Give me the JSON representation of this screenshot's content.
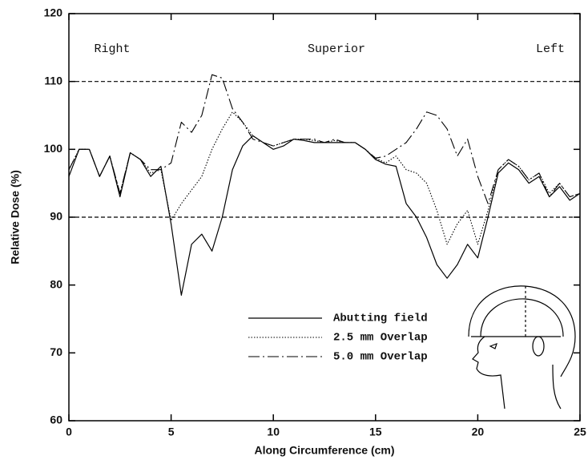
{
  "chart_data": {
    "type": "line",
    "xlabel": "Along Circumference (cm)",
    "ylabel": "Relative Dose (%)",
    "annotations": [
      "Right",
      "Superior",
      "Left"
    ],
    "reference_lines": [
      90,
      110
    ],
    "xlim": [
      0,
      25
    ],
    "xticks": [
      0,
      5,
      10,
      15,
      20,
      25
    ],
    "ylim": [
      60,
      120
    ],
    "yticks": [
      60,
      70,
      80,
      90,
      100,
      110,
      120
    ],
    "x": [
      0,
      0.5,
      1,
      1.5,
      2,
      2.5,
      3,
      3.5,
      4,
      4.5,
      5,
      5.5,
      6,
      6.5,
      7,
      7.5,
      8,
      8.5,
      9,
      9.5,
      10,
      10.5,
      11,
      11.5,
      12,
      12.5,
      13,
      13.5,
      14,
      14.5,
      15,
      15.5,
      16,
      16.5,
      17,
      17.5,
      18,
      18.5,
      19,
      19.5,
      20,
      20.5,
      21,
      21.5,
      22,
      22.5,
      23,
      23.5,
      24,
      24.5,
      25
    ],
    "series": [
      {
        "name": "Abutting field",
        "color": "#000000",
        "dash": "solid",
        "values": [
          96,
          100,
          100,
          96,
          99,
          93,
          99.5,
          98.5,
          96,
          97.5,
          89,
          78.5,
          86,
          87.5,
          85,
          90,
          97,
          100.5,
          102,
          101,
          100,
          100.5,
          101.5,
          101.3,
          101,
          101,
          101,
          101,
          101,
          100,
          98.5,
          97.8,
          97.5,
          92,
          90,
          87,
          83,
          81,
          83,
          86,
          84,
          90,
          96.5,
          98,
          97,
          95,
          96,
          93,
          94.5,
          92.5,
          93.5
        ]
      },
      {
        "name": "2.5 mm Overlap",
        "color": "#000000",
        "dash": "dotted",
        "values": [
          97,
          100,
          100,
          96,
          99,
          93.5,
          99.5,
          98.5,
          96.5,
          97,
          89.5,
          92,
          94,
          96,
          100,
          103,
          105.5,
          104,
          102,
          101,
          100.5,
          101,
          101.5,
          101.5,
          101.3,
          101,
          101.3,
          101,
          101,
          100,
          98.7,
          98,
          99,
          97,
          96.5,
          95,
          91,
          86,
          89,
          91,
          86,
          91,
          97,
          98.5,
          97.5,
          95.5,
          96.5,
          93.5,
          95,
          93,
          93.5
        ]
      },
      {
        "name": "5.0 mm Overlap",
        "color": "#000000",
        "dash": "dashdot",
        "values": [
          97,
          100,
          100,
          96,
          99,
          93.5,
          99.5,
          98.5,
          97,
          97,
          98,
          104,
          102.5,
          105,
          111,
          110.5,
          106,
          104,
          101.5,
          101,
          100.5,
          101,
          101.5,
          101.5,
          101.5,
          101,
          101.5,
          101,
          101,
          100,
          98.7,
          99,
          100,
          101,
          103,
          105.5,
          105,
          103,
          99,
          101.5,
          96,
          92,
          97,
          98.5,
          97.5,
          95.5,
          96.5,
          93,
          95,
          93,
          93.5
        ]
      }
    ]
  }
}
